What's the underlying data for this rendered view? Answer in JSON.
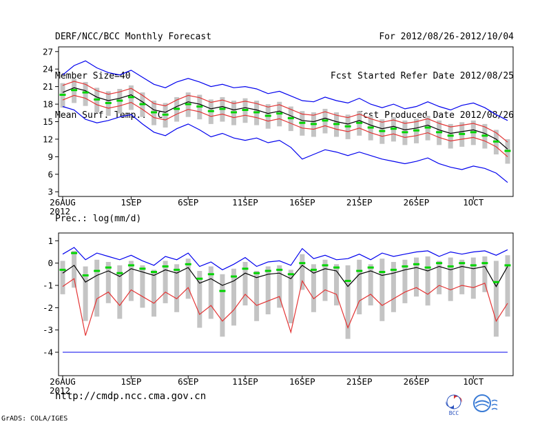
{
  "header": {
    "title": "DERF/NCC/BCC Monthly Forecast",
    "member_size": "Member Size=40",
    "temp_label": "Mean Surf. Temp.: °C",
    "for_range": "For 2012/08/26-2012/10/04",
    "refer_date": "Fcst Started Refer Date 2012/08/25",
    "produced_date": "Fcst Produced Date 2012/08/26"
  },
  "prec_label": "Prec.: log(mm/d)",
  "footer": {
    "url": "http://cmdp.ncc.cma.gov.cn",
    "credit": "GrADS: COLA/IGES",
    "bcc_label": "BCC"
  },
  "colors": {
    "line_blue": "#0000ee",
    "line_red": "#e33434",
    "line_black": "#000000",
    "marker_green": "#00d400",
    "bar_gray": "#c4c4c4",
    "text": "#000000"
  },
  "chart_data": [
    {
      "type": "line",
      "title": "Mean Surf. Temp.: °C",
      "x_tick_days": [
        0,
        6,
        11,
        16,
        21,
        26,
        31,
        36
      ],
      "x_tick_labels": [
        "26AUG",
        "1SEP",
        "6SEP",
        "11SEP",
        "16SEP",
        "21SEP",
        "26SEP",
        "1OCT"
      ],
      "x_first_label_year": "2012",
      "ylim": [
        2.2,
        27.8
      ],
      "yticks": [
        27,
        24,
        21,
        18,
        15,
        12,
        9,
        6,
        3
      ],
      "grid": false,
      "legend": false,
      "series": [
        {
          "name": "ensemble-max",
          "color": "#0000ee",
          "values": [
            23.0,
            24.6,
            25.4,
            24.2,
            23.4,
            23.0,
            23.8,
            22.6,
            21.4,
            20.8,
            21.8,
            22.4,
            21.8,
            21.0,
            21.4,
            20.8,
            21.0,
            20.6,
            19.8,
            20.2,
            19.4,
            18.6,
            18.4,
            19.2,
            18.6,
            18.2,
            19.0,
            18.0,
            17.4,
            18.0,
            17.2,
            17.6,
            18.4,
            17.6,
            17.0,
            17.8,
            18.2,
            17.4,
            16.2,
            15.2
          ]
        },
        {
          "name": "upper-bound",
          "color": "#e33434",
          "values": [
            21.2,
            21.9,
            21.4,
            20.3,
            19.7,
            20.1,
            20.7,
            19.5,
            18.1,
            17.7,
            18.7,
            19.5,
            19.1,
            18.3,
            18.7,
            18.1,
            18.5,
            18.1,
            17.5,
            17.9,
            17.1,
            16.3,
            16.1,
            16.7,
            16.1,
            15.7,
            16.3,
            15.5,
            14.9,
            15.3,
            14.7,
            15.0,
            15.5,
            14.7,
            14.1,
            14.4,
            14.7,
            14.1,
            13.1,
            11.5
          ]
        },
        {
          "name": "ensemble-mean",
          "color": "#000000",
          "values": [
            20.0,
            20.8,
            20.3,
            19.2,
            18.6,
            19.0,
            19.6,
            18.4,
            17.0,
            16.6,
            17.6,
            18.4,
            18.0,
            17.2,
            17.6,
            17.0,
            17.4,
            17.0,
            16.4,
            16.8,
            16.0,
            15.2,
            15.0,
            15.6,
            15.0,
            14.6,
            15.2,
            14.4,
            13.8,
            14.2,
            13.6,
            13.9,
            14.4,
            13.6,
            13.0,
            13.3,
            13.6,
            13.0,
            12.0,
            10.3
          ]
        },
        {
          "name": "lower-bound",
          "color": "#e33434",
          "values": [
            18.7,
            19.5,
            19.0,
            17.9,
            17.3,
            17.7,
            18.3,
            17.1,
            15.7,
            15.3,
            16.3,
            17.1,
            16.7,
            15.9,
            16.3,
            15.7,
            16.1,
            15.7,
            15.1,
            15.5,
            14.7,
            13.9,
            13.7,
            14.3,
            13.7,
            13.3,
            13.9,
            13.1,
            12.5,
            12.9,
            12.3,
            12.6,
            13.1,
            12.3,
            11.7,
            12.0,
            12.3,
            11.7,
            10.7,
            9.0
          ]
        },
        {
          "name": "ensemble-min",
          "color": "#0000ee",
          "values": [
            17.6,
            17.0,
            15.4,
            14.8,
            15.2,
            15.8,
            16.2,
            14.6,
            13.2,
            12.6,
            13.8,
            14.6,
            13.6,
            12.4,
            13.0,
            12.2,
            11.8,
            12.2,
            11.4,
            11.8,
            10.6,
            8.6,
            9.4,
            10.2,
            9.8,
            9.2,
            9.8,
            9.2,
            8.6,
            8.2,
            7.8,
            8.2,
            8.8,
            7.8,
            7.2,
            6.8,
            7.4,
            7.0,
            6.2,
            4.6
          ]
        }
      ],
      "bars": {
        "name": "ensemble-spread",
        "color": "#c4c4c4",
        "high": [
          21.6,
          22.3,
          21.8,
          20.8,
          20.2,
          20.6,
          21.2,
          20.0,
          18.6,
          18.2,
          19.2,
          20.0,
          19.6,
          18.8,
          19.2,
          18.6,
          19.0,
          18.6,
          18.0,
          18.4,
          17.6,
          16.8,
          16.6,
          17.2,
          16.6,
          16.2,
          16.8,
          16.0,
          15.4,
          15.8,
          15.2,
          15.5,
          16.0,
          15.2,
          14.6,
          14.9,
          15.2,
          14.6,
          13.6,
          12.0
        ],
        "low": [
          17.4,
          18.2,
          17.7,
          16.6,
          16.0,
          16.4,
          17.0,
          15.8,
          14.4,
          14.0,
          15.0,
          15.8,
          15.4,
          14.6,
          15.0,
          14.4,
          14.8,
          14.4,
          13.8,
          14.2,
          13.4,
          12.6,
          12.4,
          13.0,
          12.4,
          12.0,
          12.6,
          11.8,
          11.2,
          11.6,
          11.0,
          11.3,
          11.8,
          11.0,
          10.4,
          10.7,
          11.0,
          10.4,
          9.4,
          7.8
        ]
      },
      "markers": {
        "name": "median",
        "color": "#00d400",
        "values": [
          19.6,
          20.4,
          20.0,
          18.8,
          18.2,
          18.6,
          19.2,
          18.0,
          16.6,
          16.2,
          17.2,
          18.0,
          17.6,
          16.8,
          17.2,
          16.6,
          17.0,
          16.6,
          16.0,
          16.4,
          15.6,
          14.8,
          14.6,
          15.2,
          14.6,
          14.2,
          14.8,
          14.0,
          13.4,
          13.8,
          13.2,
          13.5,
          14.0,
          13.2,
          12.6,
          12.9,
          13.2,
          12.6,
          11.6,
          10.0
        ]
      }
    },
    {
      "type": "line",
      "title": "Prec.: log(mm/d)",
      "x_tick_days": [
        0,
        6,
        11,
        16,
        21,
        26,
        31,
        36
      ],
      "x_tick_labels": [
        "26AUG",
        "1SEP",
        "6SEP",
        "11SEP",
        "16SEP",
        "21SEP",
        "26SEP",
        "1OCT"
      ],
      "x_first_label_year": "2012",
      "ylim": [
        -5.05,
        1.35
      ],
      "yticks": [
        1,
        0,
        -1,
        -2,
        -3,
        -4
      ],
      "grid": false,
      "legend": false,
      "flat_line": {
        "value": -4,
        "color": "#0000ee"
      },
      "series": [
        {
          "name": "ensemble-max",
          "color": "#0000ee",
          "values": [
            0.4,
            0.7,
            0.15,
            0.45,
            0.3,
            0.15,
            0.35,
            0.1,
            -0.1,
            0.3,
            0.15,
            0.45,
            -0.15,
            0.05,
            -0.3,
            -0.05,
            0.25,
            -0.15,
            0.05,
            0.1,
            -0.1,
            0.65,
            0.2,
            0.35,
            0.15,
            0.2,
            0.4,
            0.15,
            0.45,
            0.3,
            0.4,
            0.5,
            0.55,
            0.3,
            0.5,
            0.4,
            0.5,
            0.55,
            0.35,
            0.6
          ]
        },
        {
          "name": "ensemble-mean",
          "color": "#000000",
          "values": [
            -0.45,
            -0.1,
            -0.85,
            -0.55,
            -0.35,
            -0.6,
            -0.25,
            -0.4,
            -0.55,
            -0.3,
            -0.45,
            -0.2,
            -0.9,
            -0.7,
            -1.0,
            -0.8,
            -0.45,
            -0.65,
            -0.5,
            -0.45,
            -0.7,
            -0.1,
            -0.45,
            -0.25,
            -0.35,
            -1.05,
            -0.5,
            -0.35,
            -0.55,
            -0.45,
            -0.3,
            -0.2,
            -0.35,
            -0.15,
            -0.3,
            -0.15,
            -0.25,
            -0.15,
            -1.05,
            -0.15
          ]
        },
        {
          "name": "lower-bound",
          "color": "#e33434",
          "values": [
            -1.05,
            -0.7,
            -3.25,
            -1.6,
            -1.3,
            -1.9,
            -1.2,
            -1.5,
            -1.8,
            -1.3,
            -1.6,
            -1.1,
            -2.3,
            -1.9,
            -2.6,
            -2.1,
            -1.4,
            -1.9,
            -1.7,
            -1.5,
            -3.1,
            -0.8,
            -1.6,
            -1.2,
            -1.4,
            -2.9,
            -1.7,
            -1.4,
            -1.9,
            -1.6,
            -1.3,
            -1.1,
            -1.4,
            -1.0,
            -1.2,
            -1.0,
            -1.1,
            -0.9,
            -2.6,
            -1.8
          ]
        }
      ],
      "bars": {
        "name": "ensemble-spread",
        "color": "#c4c4c4",
        "high": [
          0.1,
          0.55,
          -0.15,
          0.15,
          0.05,
          -0.1,
          0.1,
          -0.1,
          -0.3,
          0.1,
          -0.05,
          0.2,
          -0.35,
          -0.15,
          -0.5,
          -0.25,
          0.05,
          -0.35,
          -0.15,
          -0.1,
          -0.3,
          0.4,
          -0.05,
          0.15,
          -0.05,
          -0.1,
          0.15,
          -0.05,
          0.2,
          0.05,
          0.15,
          0.25,
          0.3,
          0.1,
          0.25,
          0.15,
          0.25,
          0.3,
          0.1,
          0.35
        ],
        "low": [
          -1.4,
          -1.1,
          -2.6,
          -2.4,
          -1.8,
          -2.5,
          -1.7,
          -2.0,
          -2.4,
          -1.8,
          -2.2,
          -1.6,
          -2.9,
          -2.5,
          -3.3,
          -2.8,
          -1.9,
          -2.6,
          -2.3,
          -2.0,
          -2.7,
          -1.2,
          -2.2,
          -1.7,
          -1.9,
          -3.4,
          -2.3,
          -1.9,
          -2.6,
          -2.2,
          -1.8,
          -1.5,
          -1.9,
          -1.4,
          -1.7,
          -1.4,
          -1.6,
          -1.3,
          -3.3,
          -2.4
        ]
      },
      "markers": {
        "name": "median",
        "color": "#00d400",
        "values": [
          -0.3,
          0.45,
          -0.55,
          -0.35,
          -0.2,
          -0.45,
          -0.1,
          -0.25,
          -0.4,
          -0.15,
          -0.3,
          -0.05,
          -0.7,
          -0.5,
          -1.25,
          -0.6,
          -0.25,
          -0.45,
          -0.35,
          -0.3,
          -0.5,
          0.0,
          -0.3,
          -0.1,
          -0.2,
          -0.8,
          -0.35,
          -0.2,
          -0.4,
          -0.3,
          -0.15,
          -0.05,
          -0.2,
          0.0,
          -0.15,
          0.0,
          -0.1,
          0.0,
          -0.85,
          -0.1
        ]
      }
    }
  ]
}
